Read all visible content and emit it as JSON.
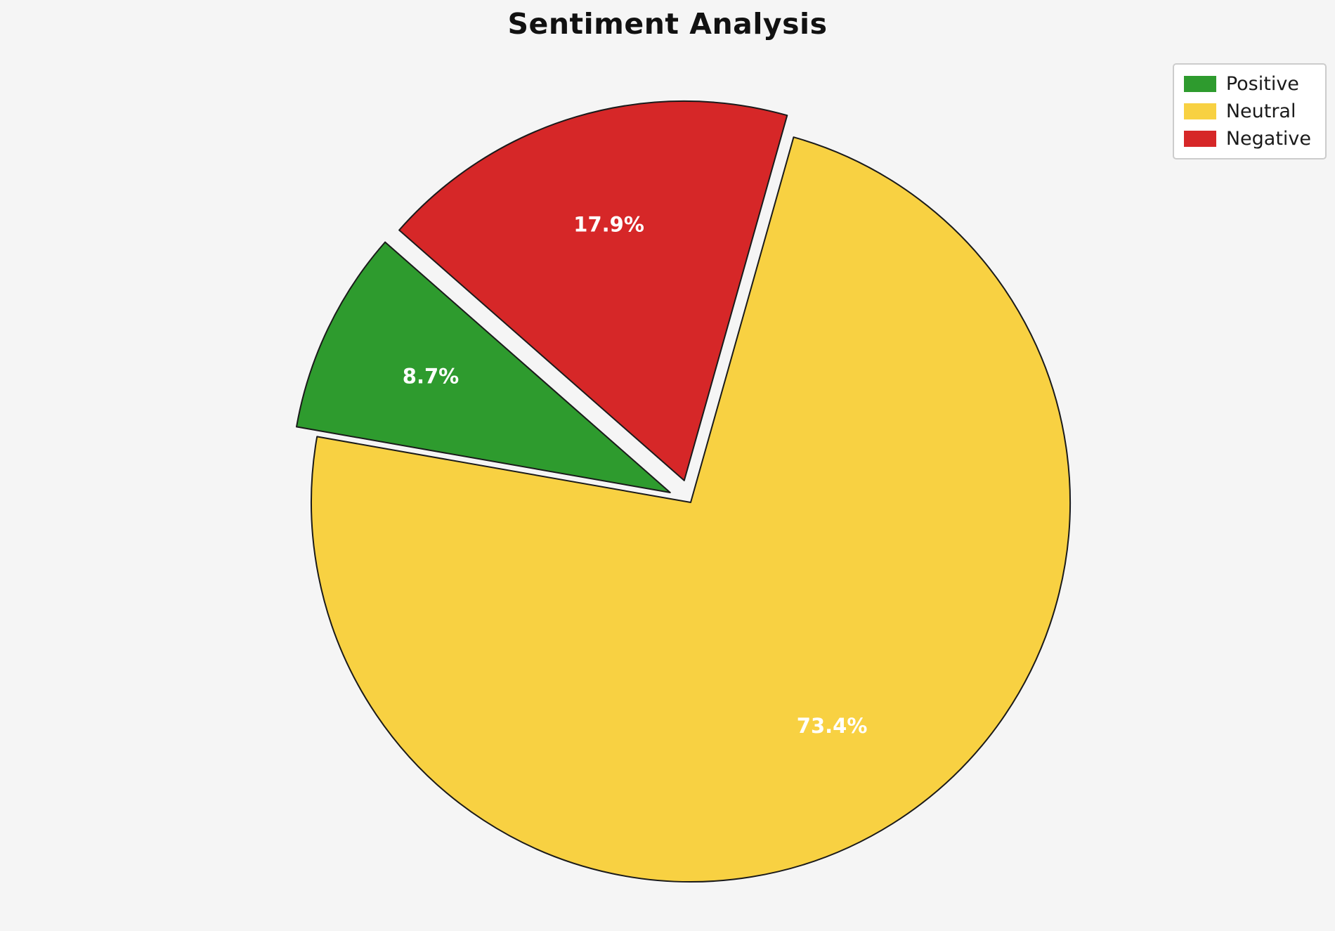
{
  "chart_data": {
    "type": "pie",
    "title": "Sentiment Analysis",
    "labels": [
      "Positive",
      "Neutral",
      "Negative"
    ],
    "values": [
      8.7,
      73.4,
      17.9
    ],
    "percent_labels": [
      "8.7%",
      "73.4%",
      "17.9%"
    ],
    "colors": [
      "#2e9b2e",
      "#f8d142",
      "#d62728"
    ],
    "explode": [
      0.06,
      0,
      0.06
    ],
    "start_angle": 138.7,
    "counterclockwise": true,
    "pct_distance": 0.7,
    "slice_border_color": "#1a1a1a",
    "label_color": "#ffffff",
    "background": "#f5f5f5",
    "legend_position": "upper right"
  }
}
